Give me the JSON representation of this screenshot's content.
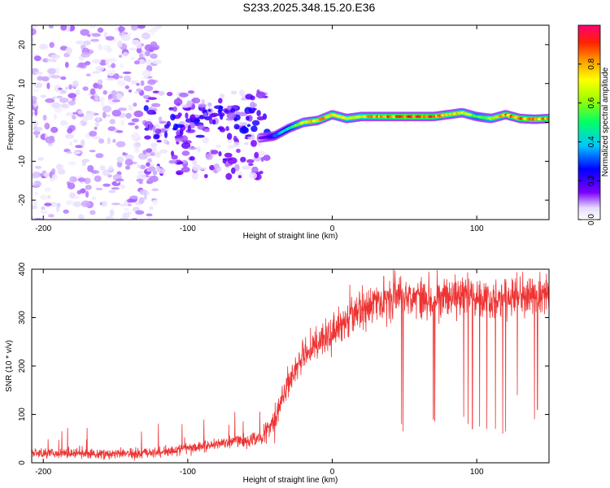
{
  "title": "S233.2025.348.15.20.E36",
  "chart_data": [
    {
      "type": "heatmap",
      "xlabel": "Height of straight line (km)",
      "ylabel": "Frequency (Hz)",
      "xlim": [
        -208,
        150
      ],
      "ylim": [
        -25,
        25
      ],
      "xticks": [
        -200,
        -100,
        0,
        100
      ],
      "yticks": [
        -20,
        -10,
        0,
        10,
        20
      ],
      "colorbar": {
        "label": "Normalized spectral amplitude",
        "range": [
          0,
          1
        ],
        "ticks": [
          "0.0",
          "0.2",
          "0.4",
          "0.6",
          "0.8"
        ],
        "tick_values": [
          0.0,
          0.2,
          0.4,
          0.6,
          0.8
        ]
      },
      "ridge": {
        "x": [
          -50,
          -40,
          -30,
          -20,
          -10,
          0,
          10,
          20,
          30,
          40,
          50,
          60,
          70,
          80,
          90,
          100,
          110,
          120,
          130,
          140,
          150
        ],
        "freq_hz": [
          -4,
          -3.5,
          -1.5,
          0,
          0.5,
          2,
          1,
          1.5,
          1.5,
          1.5,
          1.5,
          1.5,
          1.5,
          2,
          2.5,
          1.5,
          1,
          2,
          1,
          0.8,
          1
        ],
        "amplitude": [
          0.15,
          0.3,
          0.5,
          0.7,
          0.85,
          0.8,
          0.7,
          0.75,
          0.85,
          0.9,
          0.95,
          0.95,
          0.9,
          0.8,
          0.75,
          0.6,
          0.7,
          0.85,
          0.9,
          0.85,
          0.85
        ]
      },
      "noise": [
        {
          "x_range": [
            -208,
            -120
          ],
          "freq_range": [
            -25,
            25
          ],
          "amplitude": 0.08
        },
        {
          "x_range": [
            -130,
            -45
          ],
          "freq_range": [
            -14,
            8
          ],
          "amplitude": 0.12
        }
      ]
    },
    {
      "type": "line",
      "xlabel": "Height of straight line (km)",
      "ylabel": "SNR (10 * v/v)",
      "xlim": [
        -208,
        150
      ],
      "ylim": [
        0,
        400
      ],
      "xticks": [
        -200,
        -100,
        0,
        100
      ],
      "yticks": [
        0,
        100,
        200,
        300,
        400
      ],
      "series": [
        {
          "name": "SNR",
          "color": "#ee3333",
          "x": [
            -208,
            -150,
            -120,
            -100,
            -80,
            -60,
            -50,
            -40,
            -30,
            -20,
            -10,
            0,
            10,
            20,
            30,
            40,
            50,
            60,
            70,
            80,
            90,
            100,
            110,
            120,
            130,
            140,
            150
          ],
          "values": [
            20,
            18,
            22,
            30,
            40,
            45,
            50,
            90,
            170,
            220,
            250,
            270,
            290,
            320,
            330,
            340,
            345,
            345,
            340,
            340,
            345,
            345,
            335,
            340,
            345,
            345,
            345
          ],
          "dips": [
            {
              "x": 48,
              "value": 80
            },
            {
              "x": 49,
              "value": 65
            },
            {
              "x": 70,
              "value": 90
            },
            {
              "x": 71,
              "value": 85
            },
            {
              "x": 91,
              "value": 95
            },
            {
              "x": 94,
              "value": 80
            },
            {
              "x": 97,
              "value": 70
            },
            {
              "x": 102,
              "value": 75
            },
            {
              "x": 107,
              "value": 70
            },
            {
              "x": 113,
              "value": 70
            },
            {
              "x": 118,
              "value": 60
            },
            {
              "x": 120,
              "value": 65
            },
            {
              "x": 128,
              "value": 140
            },
            {
              "x": 140,
              "value": 90
            },
            {
              "x": 142,
              "value": 110
            }
          ]
        }
      ]
    }
  ]
}
